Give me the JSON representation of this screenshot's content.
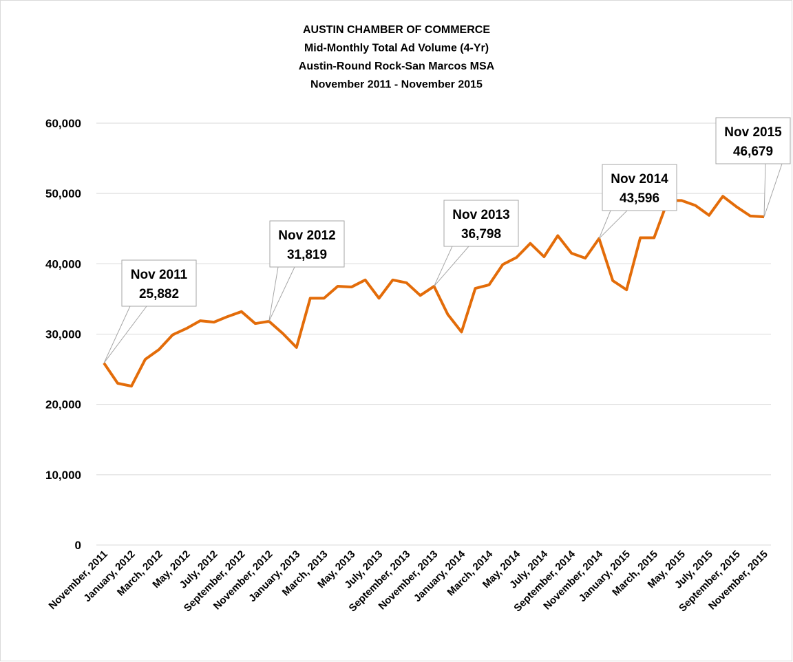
{
  "chart_data": {
    "type": "line",
    "title": [
      "AUSTIN CHAMBER OF COMMERCE",
      "Mid-Monthly Total Ad Volume (4-Yr)",
      "Austin-Round Rock-San Marcos MSA",
      "November 2011 - November 2015"
    ],
    "categories": [
      "November, 2011",
      null,
      "January, 2012",
      null,
      "March, 2012",
      null,
      "May, 2012",
      null,
      "July, 2012",
      null,
      "September, 2012",
      null,
      "November, 2012",
      null,
      "January, 2013",
      null,
      "March, 2013",
      null,
      "May, 2013",
      null,
      "July, 2013",
      null,
      "September, 2013",
      null,
      "November, 2013",
      null,
      "January, 2014",
      null,
      "March, 2014",
      null,
      "May, 2014",
      null,
      "July, 2014",
      null,
      "September, 2014",
      null,
      "November, 2014",
      null,
      "January, 2015",
      null,
      "March, 2015",
      null,
      "May, 2015",
      null,
      "July, 2015",
      null,
      "September, 2015",
      null,
      "November, 2015"
    ],
    "series": [
      {
        "color": "#e36c09",
        "values": [
          25882,
          23000,
          22600,
          26400,
          27800,
          29900,
          30800,
          31900,
          31700,
          32500,
          33200,
          31500,
          31819,
          30100,
          28100,
          35100,
          35100,
          36800,
          36700,
          37700,
          35100,
          37700,
          37300,
          35500,
          36798,
          32800,
          30300,
          36500,
          37000,
          39900,
          40900,
          42900,
          41000,
          44000,
          41500,
          40800,
          43596,
          37600,
          36300,
          43700,
          43700,
          49000,
          49000,
          48300,
          46900,
          49600,
          48100,
          46800,
          46679
        ],
        "point_labels": [
          "Nov 2011",
          null,
          null,
          null,
          null,
          null,
          null,
          null,
          null,
          null,
          null,
          null,
          "Nov 2012",
          null,
          null,
          null,
          null,
          null,
          null,
          null,
          null,
          null,
          null,
          null,
          "Nov 2013",
          null,
          null,
          null,
          null,
          null,
          null,
          null,
          null,
          null,
          null,
          null,
          "Nov 2014",
          null,
          null,
          null,
          null,
          null,
          null,
          null,
          null,
          null,
          null,
          null,
          "Nov 2015"
        ],
        "value_labels": [
          "25,882",
          null,
          null,
          null,
          null,
          null,
          null,
          null,
          null,
          null,
          null,
          null,
          "31,819",
          null,
          null,
          null,
          null,
          null,
          null,
          null,
          null,
          null,
          null,
          null,
          "36,798",
          null,
          null,
          null,
          null,
          null,
          null,
          null,
          null,
          null,
          null,
          null,
          "43,596",
          null,
          null,
          null,
          null,
          null,
          null,
          null,
          null,
          null,
          null,
          null,
          "46,679"
        ]
      }
    ],
    "ylim": [
      0,
      60000
    ],
    "yticks": [
      {
        "value": 0,
        "label": "0"
      },
      {
        "value": 10000,
        "label": "10,000"
      },
      {
        "value": 20000,
        "label": "20,000"
      },
      {
        "value": 30000,
        "label": "30,000"
      },
      {
        "value": 40000,
        "label": "40,000"
      },
      {
        "value": 50000,
        "label": "50,000"
      },
      {
        "value": 60000,
        "label": "60,000"
      }
    ],
    "grid": true
  }
}
